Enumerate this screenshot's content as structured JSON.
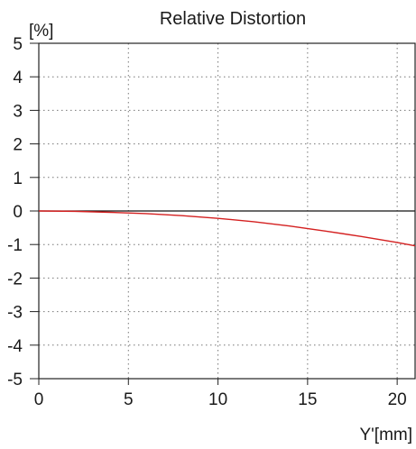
{
  "chart_data": {
    "type": "line",
    "title": "Relative Distortion",
    "xlabel": "Y'[mm]",
    "ylabel": "[%]",
    "xlim": [
      0,
      21
    ],
    "ylim": [
      -5,
      5
    ],
    "x_ticks": [
      0,
      5,
      10,
      15,
      20
    ],
    "y_ticks": [
      5,
      4,
      3,
      2,
      1,
      0,
      -1,
      -2,
      -3,
      -4,
      -5
    ],
    "grid": true,
    "series": [
      {
        "color": "#d42020",
        "x": [
          0,
          2,
          4,
          6,
          8,
          10,
          12,
          14,
          16,
          18,
          20,
          21
        ],
        "y": [
          0,
          -0.01,
          -0.04,
          -0.08,
          -0.14,
          -0.22,
          -0.32,
          -0.45,
          -0.6,
          -0.76,
          -0.94,
          -1.04
        ]
      }
    ]
  }
}
